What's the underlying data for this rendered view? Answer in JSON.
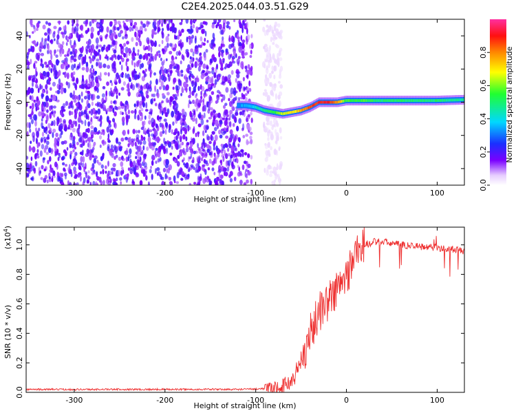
{
  "title": "C2E4.2025.044.03.51.G29",
  "chart_data": [
    {
      "type": "heatmap",
      "xlabel": "Height of straight line (km)",
      "ylabel": "Frequency (Hz)",
      "xlim": [
        -353,
        130
      ],
      "ylim": [
        -50,
        50
      ],
      "xticks": [
        -300,
        -200,
        -100,
        0,
        100
      ],
      "xtick_labels": [
        "-300",
        "-200",
        "-100",
        "0",
        "100"
      ],
      "yticks": [
        -40,
        -20,
        0,
        20,
        40
      ],
      "ytick_labels": [
        "-40",
        "-20",
        "0",
        "20",
        "40"
      ],
      "colorbar": {
        "label": "Normalized spectral amplitude",
        "range": [
          0,
          1
        ],
        "ticks": [
          0.0,
          0.2,
          0.4,
          0.6,
          0.8
        ],
        "tick_labels": [
          "0.0",
          "0.2",
          "0.4",
          "0.6",
          "0.8"
        ]
      },
      "noise_region": {
        "x_range": [
          -353,
          -85
        ],
        "amplitude": 0.15
      },
      "signal_ridge": {
        "x": [
          -120,
          -110,
          -100,
          -90,
          -80,
          -70,
          -60,
          -50,
          -40,
          -30,
          -20,
          -10,
          0,
          20,
          40,
          60,
          80,
          100,
          130
        ],
        "freq": [
          -2,
          -2,
          -3,
          -5,
          -6,
          -7,
          -6,
          -5,
          -3,
          0,
          0,
          0,
          1,
          1,
          1,
          1,
          1,
          1,
          1.5
        ],
        "amplitude": [
          0.3,
          0.35,
          0.4,
          0.5,
          0.55,
          0.65,
          0.7,
          0.75,
          0.85,
          0.9,
          0.9,
          0.8,
          0.55,
          0.55,
          0.5,
          0.5,
          0.5,
          0.5,
          0.45
        ]
      },
      "grid": false
    },
    {
      "type": "line",
      "xlabel": "Height of straight line (km)",
      "ylabel": "SNR (10 * v/v)",
      "scale_label": "(x10",
      "scale_exponent": "4",
      "scale_suffix": ")",
      "xlim": [
        -353,
        130
      ],
      "ylim": [
        0,
        1.12
      ],
      "xticks": [
        -300,
        -200,
        -100,
        0,
        100
      ],
      "xtick_labels": [
        "-300",
        "-200",
        "-100",
        "0",
        "100"
      ],
      "yticks": [
        0.0,
        0.2,
        0.4,
        0.6,
        0.8,
        1.0
      ],
      "ytick_labels": [
        "0.0",
        "0.2",
        "0.4",
        "0.6",
        "0.8",
        "1.0"
      ],
      "series": [
        {
          "color": "#ee2e2e",
          "x": [
            -353,
            -300,
            -200,
            -120,
            -90,
            -70,
            -60,
            -50,
            -40,
            -30,
            -20,
            -10,
            0,
            10,
            20,
            30,
            40,
            60,
            80,
            100,
            130
          ],
          "y": [
            0.02,
            0.02,
            0.02,
            0.02,
            0.025,
            0.04,
            0.08,
            0.2,
            0.4,
            0.55,
            0.62,
            0.7,
            0.78,
            0.95,
            1.0,
            1.02,
            1.02,
            1.0,
            0.99,
            0.98,
            0.96
          ]
        }
      ],
      "grid": false
    }
  ]
}
